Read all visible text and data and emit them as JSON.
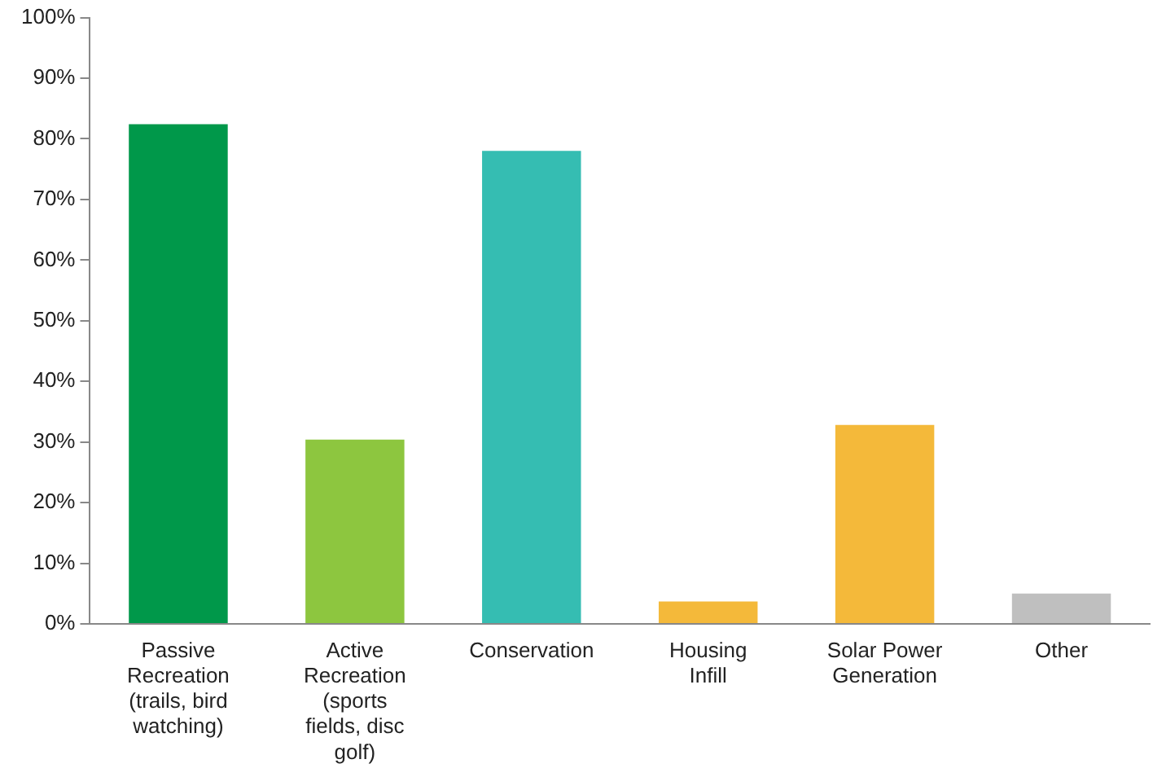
{
  "chart_data": {
    "type": "bar",
    "categories": [
      "Passive Recreation (trails, bird watching)",
      "Active Recreation (sports fields, disc golf)",
      "Conservation",
      "Housing Infill",
      "Solar Power Generation",
      "Other"
    ],
    "values": [
      82.4,
      30.4,
      78,
      3.7,
      32.8,
      5
    ],
    "colors": [
      "#00984a",
      "#8dc63f",
      "#35bdb2",
      "#f4b93a",
      "#f4b93a",
      "#bfbfbf"
    ],
    "ylim": [
      0,
      100
    ],
    "yticks": [
      {
        "value": 0,
        "label": "0%"
      },
      {
        "value": 10,
        "label": "10%"
      },
      {
        "value": 20,
        "label": "20%"
      },
      {
        "value": 30,
        "label": "30%"
      },
      {
        "value": 40,
        "label": "40%"
      },
      {
        "value": 50,
        "label": "50%"
      },
      {
        "value": 60,
        "label": "60%"
      },
      {
        "value": 70,
        "label": "70%"
      },
      {
        "value": 80,
        "label": "80%"
      },
      {
        "value": 90,
        "label": "90%"
      },
      {
        "value": 100,
        "label": "100%"
      }
    ],
    "grid": false
  }
}
